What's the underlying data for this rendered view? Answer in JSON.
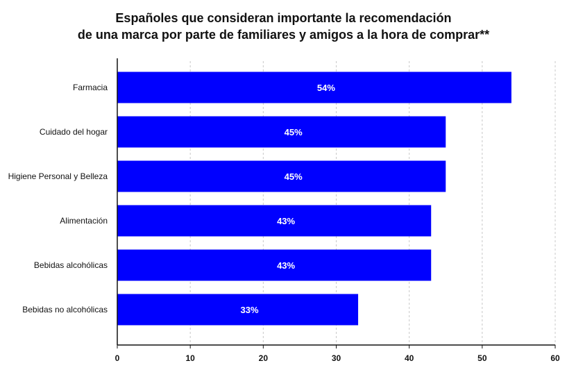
{
  "chart_data": {
    "type": "bar",
    "orientation": "horizontal",
    "title_lines": [
      "Españoles que consideran importante la recomendación",
      "de una marca por parte de familiares y amigos a la hora de comprar**"
    ],
    "categories": [
      "Farmacia",
      "Cuidado del hogar",
      "Higiene Personal y Belleza",
      "Alimentación",
      "Bebidas alcohólicas",
      "Bebidas no alcohólicas"
    ],
    "values": [
      54,
      45,
      45,
      43,
      43,
      33
    ],
    "data_labels": [
      "54%",
      "45%",
      "45%",
      "43%",
      "43%",
      "33%"
    ],
    "xlim": [
      0,
      60
    ],
    "xticks": [
      0,
      10,
      20,
      30,
      40,
      50,
      60
    ],
    "grid": "vertical-dashed",
    "bar_color": "#0000ff",
    "xlabel": "",
    "ylabel": ""
  }
}
